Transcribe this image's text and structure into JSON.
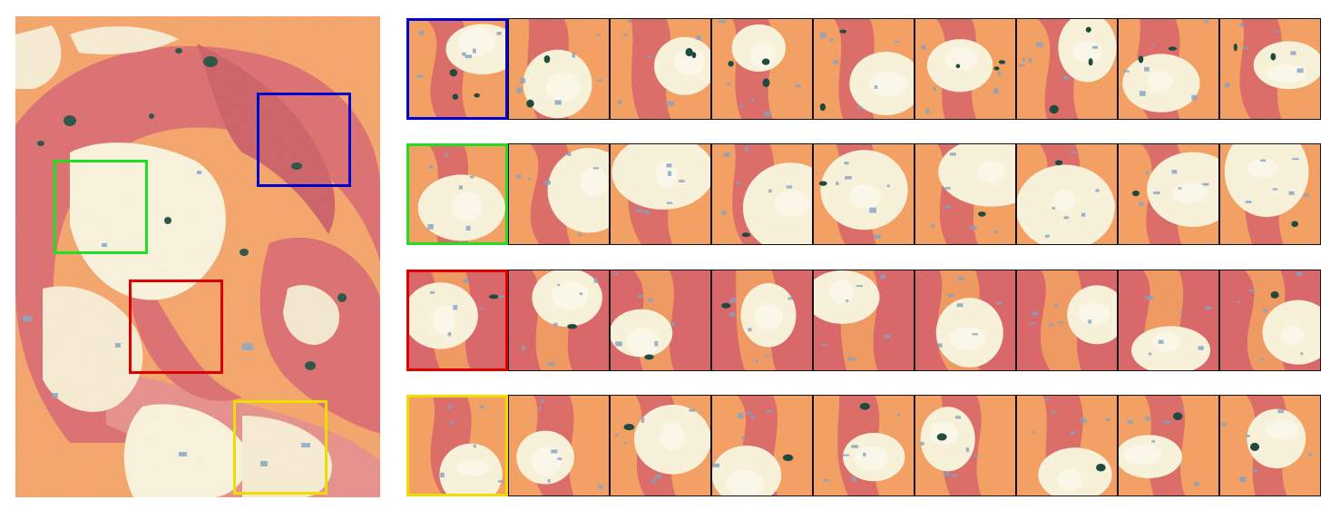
{
  "figure": {
    "source_image": {
      "name": "marbled-texture-source",
      "palette": {
        "orange": "#f2a063",
        "salmon": "#d9686a",
        "rose": "#e38a86",
        "cream": "#f7f1da",
        "blue_fleck": "#7fa3c4",
        "dark_green": "#1f4a3e"
      }
    },
    "regions": [
      {
        "id": "blue",
        "color": "#0000cc"
      },
      {
        "id": "green",
        "color": "#22dd22"
      },
      {
        "id": "red",
        "color": "#dd0000"
      },
      {
        "id": "yellow",
        "color": "#eedd00"
      }
    ],
    "rows": [
      {
        "region": "blue",
        "tiles_per_row": 9
      },
      {
        "region": "green",
        "tiles_per_row": 9
      },
      {
        "region": "red",
        "tiles_per_row": 9
      },
      {
        "region": "yellow",
        "tiles_per_row": 9
      }
    ]
  }
}
